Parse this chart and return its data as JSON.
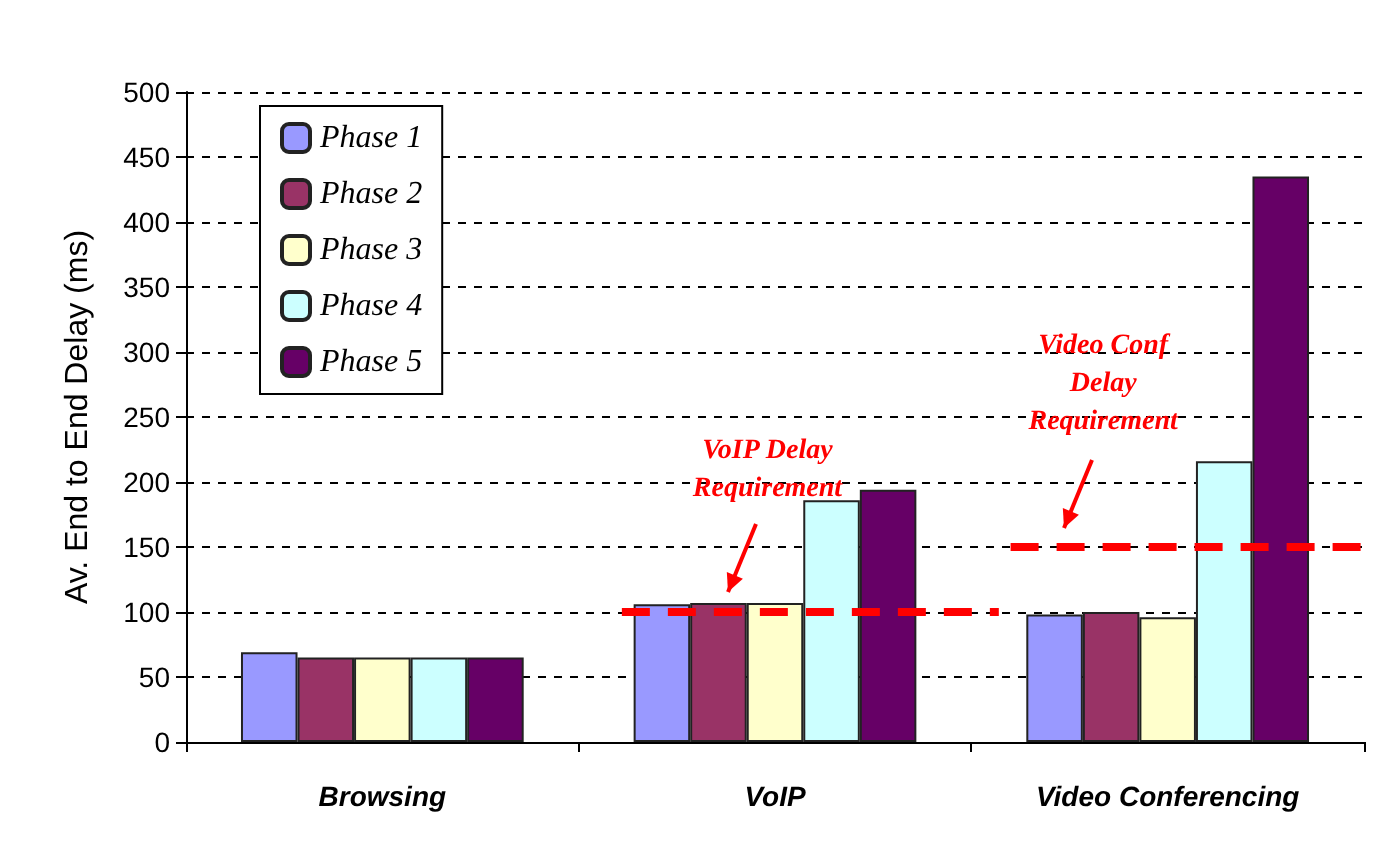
{
  "chart_data": {
    "type": "bar",
    "ylabel": "Av. End to End Delay (ms)",
    "categories": [
      "Browsing",
      "VoIP",
      "Video Conferencing"
    ],
    "series": [
      {
        "name": "Phase 1",
        "color": "#9999ff",
        "values": [
          69,
          106,
          98
        ]
      },
      {
        "name": "Phase 2",
        "color": "#993366",
        "values": [
          65,
          107,
          100
        ]
      },
      {
        "name": "Phase 3",
        "color": "#ffffcc",
        "values": [
          65,
          107,
          96
        ]
      },
      {
        "name": "Phase 4",
        "color": "#ccffff",
        "values": [
          65,
          186,
          216
        ]
      },
      {
        "name": "Phase 5",
        "color": "#660066",
        "values": [
          65,
          194,
          435
        ]
      }
    ],
    "ylim": [
      0,
      500
    ],
    "yticks": [
      0,
      50,
      100,
      150,
      200,
      250,
      300,
      350,
      400,
      450,
      500
    ],
    "ref_lines": [
      {
        "axis": "y",
        "value": 100,
        "color": "#ff0000",
        "line_style": "dashed"
      },
      {
        "axis": "y",
        "value": 150,
        "color": "#ff0000",
        "line_style": "dashed"
      }
    ],
    "annotations": [
      "VoIP Delay Requirement",
      "Video Conf Delay Requirement"
    ],
    "grid": "y",
    "legend": "top left"
  }
}
